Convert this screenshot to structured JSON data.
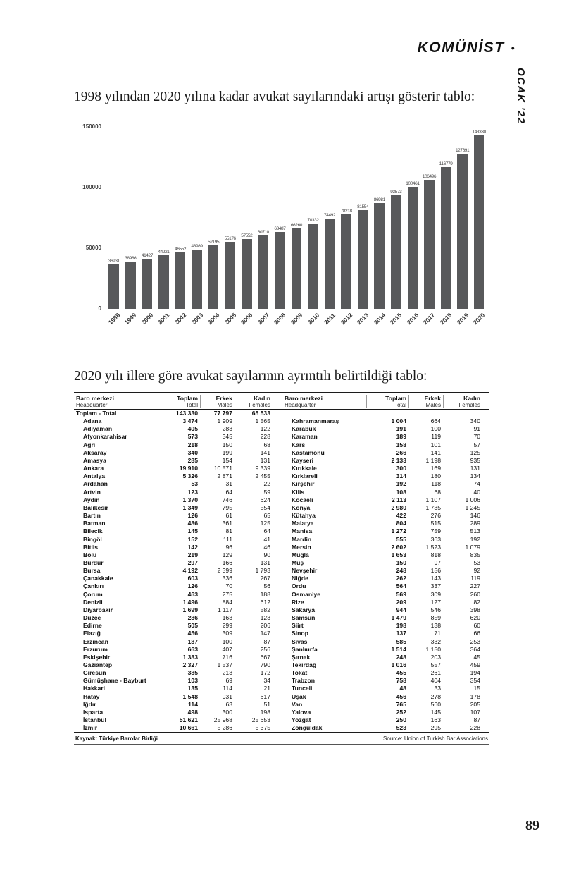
{
  "masthead": {
    "title": "KOMÜNİST",
    "bullet": "•",
    "issue": "OCAK '22"
  },
  "intro_text": "1998 yılından 2020 yılına kadar avukat sayılarındaki artışı gösterir tablo:",
  "table_intro": "2020 yılı illere göre avukat sayılarının ayrıntılı belirtildiği tablo:",
  "page_number": "89",
  "chart_data": {
    "type": "bar",
    "title": "",
    "xlabel": "",
    "ylabel": "",
    "categories": [
      1998,
      1999,
      2000,
      2001,
      2002,
      2003,
      2004,
      2005,
      2006,
      2007,
      2008,
      2009,
      2010,
      2011,
      2012,
      2013,
      2014,
      2015,
      2016,
      2017,
      2018,
      2019,
      2020
    ],
    "values": [
      36931,
      38986,
      41427,
      44221,
      46552,
      48989,
      52195,
      55176,
      57552,
      60710,
      63487,
      66260,
      70332,
      74492,
      78218,
      81554,
      86981,
      93573,
      100461,
      106496,
      116779,
      127691,
      143330
    ],
    "ylim": [
      0,
      150000
    ],
    "yticks": [
      0,
      50000,
      100000,
      150000
    ],
    "grid": false,
    "legend": false,
    "bar_color": "#58595b"
  },
  "table": {
    "headers": {
      "col_name": "Baro merkezi",
      "col_name_sub": "Headquarter",
      "col_total": "Toplam",
      "col_total_sub": "Total",
      "col_male": "Erkek",
      "col_male_sub": "Males",
      "col_female": "Kadın",
      "col_female_sub": "Females"
    },
    "total_row": {
      "name": "Toplam - Total",
      "toplam": "143 330",
      "erkek": "77 797",
      "kadin": "65 533"
    },
    "left_rows": [
      [
        "Adana",
        "3 474",
        "1 909",
        "1 565"
      ],
      [
        "Adıyaman",
        "405",
        "283",
        "122"
      ],
      [
        "Afyonkarahisar",
        "573",
        "345",
        "228"
      ],
      [
        "Ağrı",
        "218",
        "150",
        "68"
      ],
      [
        "Aksaray",
        "340",
        "199",
        "141"
      ],
      [
        "Amasya",
        "285",
        "154",
        "131"
      ],
      [
        "Ankara",
        "19 910",
        "10 571",
        "9 339"
      ],
      [
        "Antalya",
        "5 326",
        "2 871",
        "2 455"
      ],
      [
        "Ardahan",
        "53",
        "31",
        "22"
      ],
      [
        "Artvin",
        "123",
        "64",
        "59"
      ],
      [
        "Aydın",
        "1 370",
        "746",
        "624"
      ],
      [
        "Balıkesir",
        "1 349",
        "795",
        "554"
      ],
      [
        "Bartın",
        "126",
        "61",
        "65"
      ],
      [
        "Batman",
        "486",
        "361",
        "125"
      ],
      [
        "Bilecik",
        "145",
        "81",
        "64"
      ],
      [
        "Bingöl",
        "152",
        "111",
        "41"
      ],
      [
        "Bitlis",
        "142",
        "96",
        "46"
      ],
      [
        "Bolu",
        "219",
        "129",
        "90"
      ],
      [
        "Burdur",
        "297",
        "166",
        "131"
      ],
      [
        "Bursa",
        "4 192",
        "2 399",
        "1 793"
      ],
      [
        "Çanakkale",
        "603",
        "336",
        "267"
      ],
      [
        "Çankırı",
        "126",
        "70",
        "56"
      ],
      [
        "Çorum",
        "463",
        "275",
        "188"
      ],
      [
        "Denizli",
        "1 496",
        "884",
        "612"
      ],
      [
        "Diyarbakır",
        "1 699",
        "1 117",
        "582"
      ],
      [
        "Düzce",
        "286",
        "163",
        "123"
      ],
      [
        "Edirne",
        "505",
        "299",
        "206"
      ],
      [
        "Elazığ",
        "456",
        "309",
        "147"
      ],
      [
        "Erzincan",
        "187",
        "100",
        "87"
      ],
      [
        "Erzurum",
        "663",
        "407",
        "256"
      ],
      [
        "Eskişehir",
        "1 383",
        "716",
        "667"
      ],
      [
        "Gaziantep",
        "2 327",
        "1 537",
        "790"
      ],
      [
        "Giresun",
        "385",
        "213",
        "172"
      ],
      [
        "Gümüşhane - Bayburt",
        "103",
        "69",
        "34"
      ],
      [
        "Hakkari",
        "135",
        "114",
        "21"
      ],
      [
        "Hatay",
        "1 548",
        "931",
        "617"
      ],
      [
        "Iğdır",
        "114",
        "63",
        "51"
      ],
      [
        "Isparta",
        "498",
        "300",
        "198"
      ],
      [
        "İstanbul",
        "51 621",
        "25 968",
        "25 653"
      ],
      [
        "İzmir",
        "10 661",
        "5 286",
        "5 375"
      ]
    ],
    "right_rows": [
      [
        "Kahramanmaraş",
        "1 004",
        "664",
        "340"
      ],
      [
        "Karabük",
        "191",
        "100",
        "91"
      ],
      [
        "Karaman",
        "189",
        "119",
        "70"
      ],
      [
        "Kars",
        "158",
        "101",
        "57"
      ],
      [
        "Kastamonu",
        "266",
        "141",
        "125"
      ],
      [
        "Kayseri",
        "2 133",
        "1 198",
        "935"
      ],
      [
        "Kırıkkale",
        "300",
        "169",
        "131"
      ],
      [
        "Kırklareli",
        "314",
        "180",
        "134"
      ],
      [
        "Kırşehir",
        "192",
        "118",
        "74"
      ],
      [
        "Kilis",
        "108",
        "68",
        "40"
      ],
      [
        "Kocaeli",
        "2 113",
        "1 107",
        "1 006"
      ],
      [
        "Konya",
        "2 980",
        "1 735",
        "1 245"
      ],
      [
        "Kütahya",
        "422",
        "276",
        "146"
      ],
      [
        "Malatya",
        "804",
        "515",
        "289"
      ],
      [
        "Manisa",
        "1 272",
        "759",
        "513"
      ],
      [
        "Mardin",
        "555",
        "363",
        "192"
      ],
      [
        "Mersin",
        "2 602",
        "1 523",
        "1 079"
      ],
      [
        "Muğla",
        "1 653",
        "818",
        "835"
      ],
      [
        "Muş",
        "150",
        "97",
        "53"
      ],
      [
        "Nevşehir",
        "248",
        "156",
        "92"
      ],
      [
        "Niğde",
        "262",
        "143",
        "119"
      ],
      [
        "Ordu",
        "564",
        "337",
        "227"
      ],
      [
        "Osmaniye",
        "569",
        "309",
        "260"
      ],
      [
        "Rize",
        "209",
        "127",
        "82"
      ],
      [
        "Sakarya",
        "944",
        "546",
        "398"
      ],
      [
        "Samsun",
        "1 479",
        "859",
        "620"
      ],
      [
        "Siirt",
        "198",
        "138",
        "60"
      ],
      [
        "Sinop",
        "137",
        "71",
        "66"
      ],
      [
        "Sivas",
        "585",
        "332",
        "253"
      ],
      [
        "Şanlıurfa",
        "1 514",
        "1 150",
        "364"
      ],
      [
        "Şırnak",
        "248",
        "203",
        "45"
      ],
      [
        "Tekirdağ",
        "1 016",
        "557",
        "459"
      ],
      [
        "Tokat",
        "455",
        "261",
        "194"
      ],
      [
        "Trabzon",
        "758",
        "404",
        "354"
      ],
      [
        "Tunceli",
        "48",
        "33",
        "15"
      ],
      [
        "Uşak",
        "456",
        "278",
        "178"
      ],
      [
        "Van",
        "765",
        "560",
        "205"
      ],
      [
        "Yalova",
        "252",
        "145",
        "107"
      ],
      [
        "Yozgat",
        "250",
        "163",
        "87"
      ],
      [
        "Zonguldak",
        "523",
        "295",
        "228"
      ]
    ],
    "source_left": "Kaynak: Türkiye Barolar Birliği",
    "source_right": "Source: Union of Turkish Bar Associations"
  }
}
